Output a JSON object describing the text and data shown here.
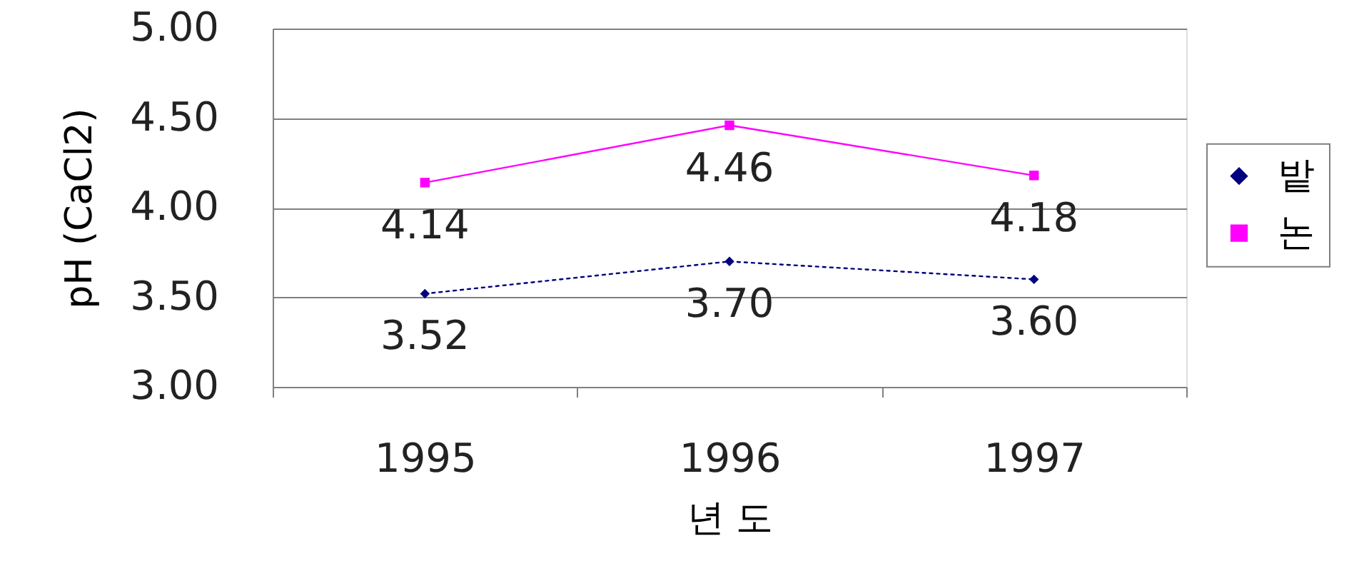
{
  "chart_data": {
    "type": "line",
    "categories": [
      "1995",
      "1996",
      "1997"
    ],
    "xlabel": "년 도",
    "ylabel": "pH (CaCl2)",
    "ylim": [
      3,
      5
    ],
    "yticks": [
      {
        "value": 3,
        "label": "3.00"
      },
      {
        "value": 3.5,
        "label": "3.50"
      },
      {
        "value": 4,
        "label": "4.00"
      },
      {
        "value": 4.5,
        "label": "4.50"
      },
      {
        "value": 5,
        "label": "5.00"
      }
    ],
    "grid": "y",
    "legend": "right",
    "series": [
      {
        "name": "밭",
        "color": "#000080",
        "values": [
          3.52,
          3.7,
          3.6
        ],
        "value_labels": [
          "3.52",
          "3.70",
          "3.60"
        ],
        "marker": "diamond",
        "line_style": "dotted"
      },
      {
        "name": "논",
        "color": "#ff00ff",
        "values": [
          4.14,
          4.46,
          4.18
        ],
        "value_labels": [
          "4.14",
          "4.46",
          "4.18"
        ],
        "marker": "square",
        "line_style": "solid"
      }
    ]
  }
}
